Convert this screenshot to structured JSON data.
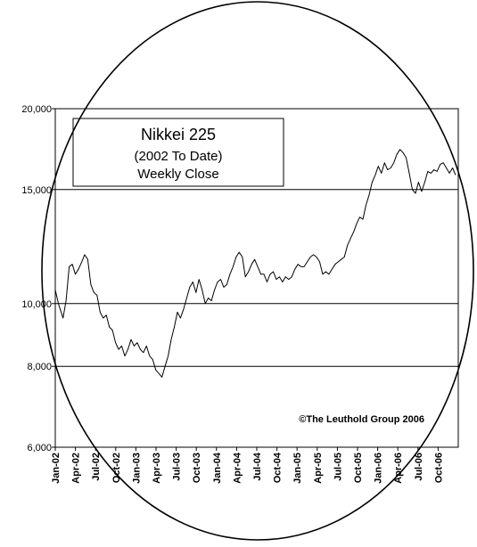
{
  "chart_data": {
    "type": "line",
    "title": "Nikkei 225",
    "subtitle": "(2002 To Date)",
    "subtitle2": "Weekly Close",
    "credit": "©The Leuthold Group 2006",
    "y_scale": "log",
    "ylim": [
      6000,
      20000
    ],
    "y_ticks": [
      {
        "value": 6000,
        "label": "6,000"
      },
      {
        "value": 8000,
        "label": "8,000"
      },
      {
        "value": 10000,
        "label": "10,000"
      },
      {
        "value": 15000,
        "label": "15,000"
      },
      {
        "value": 20000,
        "label": "20,000"
      }
    ],
    "gridlines": [
      8000,
      10000,
      15000
    ],
    "x_ticks": [
      "Jan-02",
      "Apr-02",
      "Jul-02",
      "Oct-02",
      "Jan-03",
      "Apr-03",
      "Jul-03",
      "Oct-03",
      "Jan-04",
      "Apr-04",
      "Jul-04",
      "Oct-04",
      "Jan-05",
      "Apr-05",
      "Jul-05",
      "Oct-05",
      "Jan-06",
      "Apr-06",
      "Jul-06",
      "Oct-06"
    ],
    "xlim": [
      "2002-01-01",
      "2006-12-31"
    ],
    "series": [
      {
        "color": "#000000",
        "points": [
          [
            "2002-01-01",
            10500
          ],
          [
            "2002-01-15",
            10000
          ],
          [
            "2002-02-05",
            9500
          ],
          [
            "2002-02-19",
            10100
          ],
          [
            "2002-03-05",
            11400
          ],
          [
            "2002-03-19",
            11500
          ],
          [
            "2002-04-02",
            11100
          ],
          [
            "2002-04-16",
            11300
          ],
          [
            "2002-05-01",
            11600
          ],
          [
            "2002-05-14",
            11900
          ],
          [
            "2002-05-28",
            11700
          ],
          [
            "2002-06-11",
            10700
          ],
          [
            "2002-06-25",
            10400
          ],
          [
            "2002-07-09",
            10300
          ],
          [
            "2002-07-23",
            9700
          ],
          [
            "2002-08-06",
            9500
          ],
          [
            "2002-08-20",
            9600
          ],
          [
            "2002-09-03",
            9200
          ],
          [
            "2002-09-17",
            9100
          ],
          [
            "2002-10-01",
            8700
          ],
          [
            "2002-10-15",
            8500
          ],
          [
            "2002-10-29",
            8600
          ],
          [
            "2002-11-12",
            8300
          ],
          [
            "2002-11-26",
            8500
          ],
          [
            "2002-12-10",
            8800
          ],
          [
            "2002-12-24",
            8600
          ],
          [
            "2003-01-07",
            8700
          ],
          [
            "2003-01-21",
            8500
          ],
          [
            "2003-02-04",
            8400
          ],
          [
            "2003-02-18",
            8600
          ],
          [
            "2003-03-04",
            8300
          ],
          [
            "2003-03-18",
            8200
          ],
          [
            "2003-04-01",
            7900
          ],
          [
            "2003-04-15",
            7800
          ],
          [
            "2003-04-29",
            7700
          ],
          [
            "2003-05-13",
            8000
          ],
          [
            "2003-05-27",
            8300
          ],
          [
            "2003-06-10",
            8800
          ],
          [
            "2003-06-24",
            9200
          ],
          [
            "2003-07-08",
            9700
          ],
          [
            "2003-07-22",
            9500
          ],
          [
            "2003-08-05",
            9800
          ],
          [
            "2003-08-19",
            10200
          ],
          [
            "2003-09-02",
            10600
          ],
          [
            "2003-09-16",
            10800
          ],
          [
            "2003-09-30",
            10400
          ],
          [
            "2003-10-14",
            10900
          ],
          [
            "2003-10-28",
            10500
          ],
          [
            "2003-11-11",
            10000
          ],
          [
            "2003-11-25",
            10200
          ],
          [
            "2003-12-09",
            10100
          ],
          [
            "2003-12-23",
            10500
          ],
          [
            "2004-01-06",
            10800
          ],
          [
            "2004-01-20",
            10900
          ],
          [
            "2004-02-03",
            10600
          ],
          [
            "2004-02-17",
            10700
          ],
          [
            "2004-03-02",
            11100
          ],
          [
            "2004-03-16",
            11400
          ],
          [
            "2004-03-30",
            11800
          ],
          [
            "2004-04-13",
            12000
          ],
          [
            "2004-04-27",
            11800
          ],
          [
            "2004-05-11",
            11000
          ],
          [
            "2004-05-25",
            11200
          ],
          [
            "2004-06-08",
            11500
          ],
          [
            "2004-06-22",
            11700
          ],
          [
            "2004-07-06",
            11400
          ],
          [
            "2004-07-20",
            11100
          ],
          [
            "2004-08-03",
            11100
          ],
          [
            "2004-08-17",
            10800
          ],
          [
            "2004-08-31",
            11100
          ],
          [
            "2004-09-14",
            11200
          ],
          [
            "2004-09-28",
            10900
          ],
          [
            "2004-10-12",
            11000
          ],
          [
            "2004-10-26",
            10800
          ],
          [
            "2004-11-09",
            11000
          ],
          [
            "2004-11-23",
            10900
          ],
          [
            "2004-12-07",
            11000
          ],
          [
            "2004-12-21",
            11300
          ],
          [
            "2005-01-04",
            11500
          ],
          [
            "2005-01-18",
            11400
          ],
          [
            "2005-02-01",
            11400
          ],
          [
            "2005-02-15",
            11600
          ],
          [
            "2005-03-01",
            11800
          ],
          [
            "2005-03-15",
            11900
          ],
          [
            "2005-03-29",
            11800
          ],
          [
            "2005-04-12",
            11600
          ],
          [
            "2005-04-26",
            11100
          ],
          [
            "2005-05-10",
            11200
          ],
          [
            "2005-05-24",
            11100
          ],
          [
            "2005-06-07",
            11300
          ],
          [
            "2005-06-21",
            11500
          ],
          [
            "2005-07-05",
            11600
          ],
          [
            "2005-07-19",
            11700
          ],
          [
            "2005-08-02",
            11800
          ],
          [
            "2005-08-16",
            12300
          ],
          [
            "2005-08-30",
            12600
          ],
          [
            "2005-09-13",
            12900
          ],
          [
            "2005-09-27",
            13300
          ],
          [
            "2005-10-11",
            13600
          ],
          [
            "2005-10-25",
            13500
          ],
          [
            "2005-11-08",
            14200
          ],
          [
            "2005-11-22",
            14700
          ],
          [
            "2005-12-06",
            15400
          ],
          [
            "2005-12-20",
            15800
          ],
          [
            "2006-01-03",
            16300
          ],
          [
            "2006-01-17",
            15900
          ],
          [
            "2006-01-31",
            16500
          ],
          [
            "2006-02-14",
            16100
          ],
          [
            "2006-02-28",
            16200
          ],
          [
            "2006-03-14",
            16500
          ],
          [
            "2006-03-28",
            17000
          ],
          [
            "2006-04-11",
            17300
          ],
          [
            "2006-04-25",
            17100
          ],
          [
            "2006-05-09",
            16800
          ],
          [
            "2006-05-23",
            15900
          ],
          [
            "2006-06-06",
            15000
          ],
          [
            "2006-06-20",
            14800
          ],
          [
            "2006-07-04",
            15400
          ],
          [
            "2006-07-18",
            14900
          ],
          [
            "2006-08-01",
            15400
          ],
          [
            "2006-08-15",
            16000
          ],
          [
            "2006-08-29",
            15900
          ],
          [
            "2006-09-12",
            16100
          ],
          [
            "2006-09-26",
            16000
          ],
          [
            "2006-10-10",
            16400
          ],
          [
            "2006-10-24",
            16500
          ],
          [
            "2006-11-07",
            16200
          ],
          [
            "2006-11-21",
            15900
          ],
          [
            "2006-12-05",
            16200
          ],
          [
            "2006-12-19",
            15800
          ]
        ]
      }
    ]
  }
}
